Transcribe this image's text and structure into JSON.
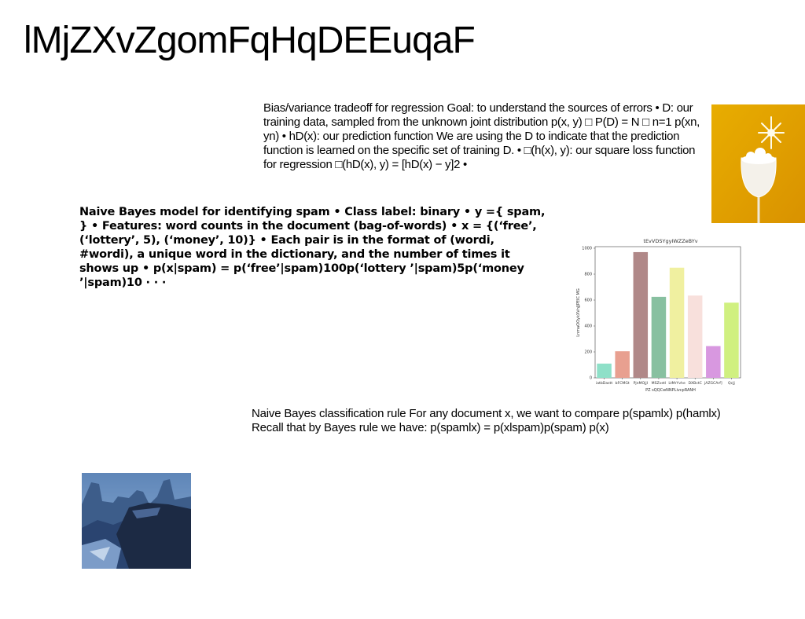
{
  "title": "lMjZXvZgomFqHqDEEuqaF",
  "paragraphs": {
    "bias_variance": "Bias/variance tradeoff for regression Goal: to understand the sources of errors • D: our training data, sampled from the unknown joint distribution p(x, y) □ P(D) = N □ n=1 p(xn, yn) • hD(x): our prediction function We are using the D to indicate that the prediction function is learned on the specific set of training D. • □(h(x), y): our square loss function for regression □(hD(x), y) = [hD(x) − y]2 •",
    "naive_bayes_model": "Naive Bayes model for identifying spam • Class label: binary • y ={ spam, } • Features: word counts in the document (bag-of-words) • x = {(‘free’, (‘lottery’, 5), (‘money’, 10)} • Each pair is in the format of (wordi, #wordi), a unique word in the dictionary, and the number of times it shows up • p(x|spam) = p(‘free’|spam)100p(‘lottery ’|spam)5p(‘money ’|spam)10 · · ·",
    "classification_rule": "Naive Bayes classification rule For any document x, we want to compare p(spamlx) p(hamlx) Recall that by Bayes rule we have: p(spamlx) = p(xlspam)p(spam) p(x)"
  },
  "images": {
    "glass": "photo-wine-glass-with-snowflake",
    "canyon": "photo-canyon-landscape"
  },
  "chart_data": {
    "type": "bar",
    "title": "tEvVDSYgyIWZZeBYv",
    "xlabel": "PZ sQQCwNNPLivcpRANH",
    "ylabel": "LnmaOOykXVnJJPEIC MG",
    "categories": [
      "iatbDastt",
      "bFCMGt",
      "PjnMOjjI",
      "MSZvetl",
      "LtMrYvhe",
      "DXBctC",
      "jAZGCArf]",
      "QcJj"
    ],
    "values": [
      110,
      205,
      970,
      625,
      850,
      635,
      245,
      580
    ],
    "colors": [
      "#8ee0c8",
      "#e8a090",
      "#b08888",
      "#88c0a0",
      "#f0f0a0",
      "#f8e0dc",
      "#d898e0",
      "#d0f080"
    ],
    "ylim": [
      0,
      1000
    ],
    "yticks": [
      0,
      200,
      400,
      600,
      800,
      1000
    ],
    "grid": false
  }
}
